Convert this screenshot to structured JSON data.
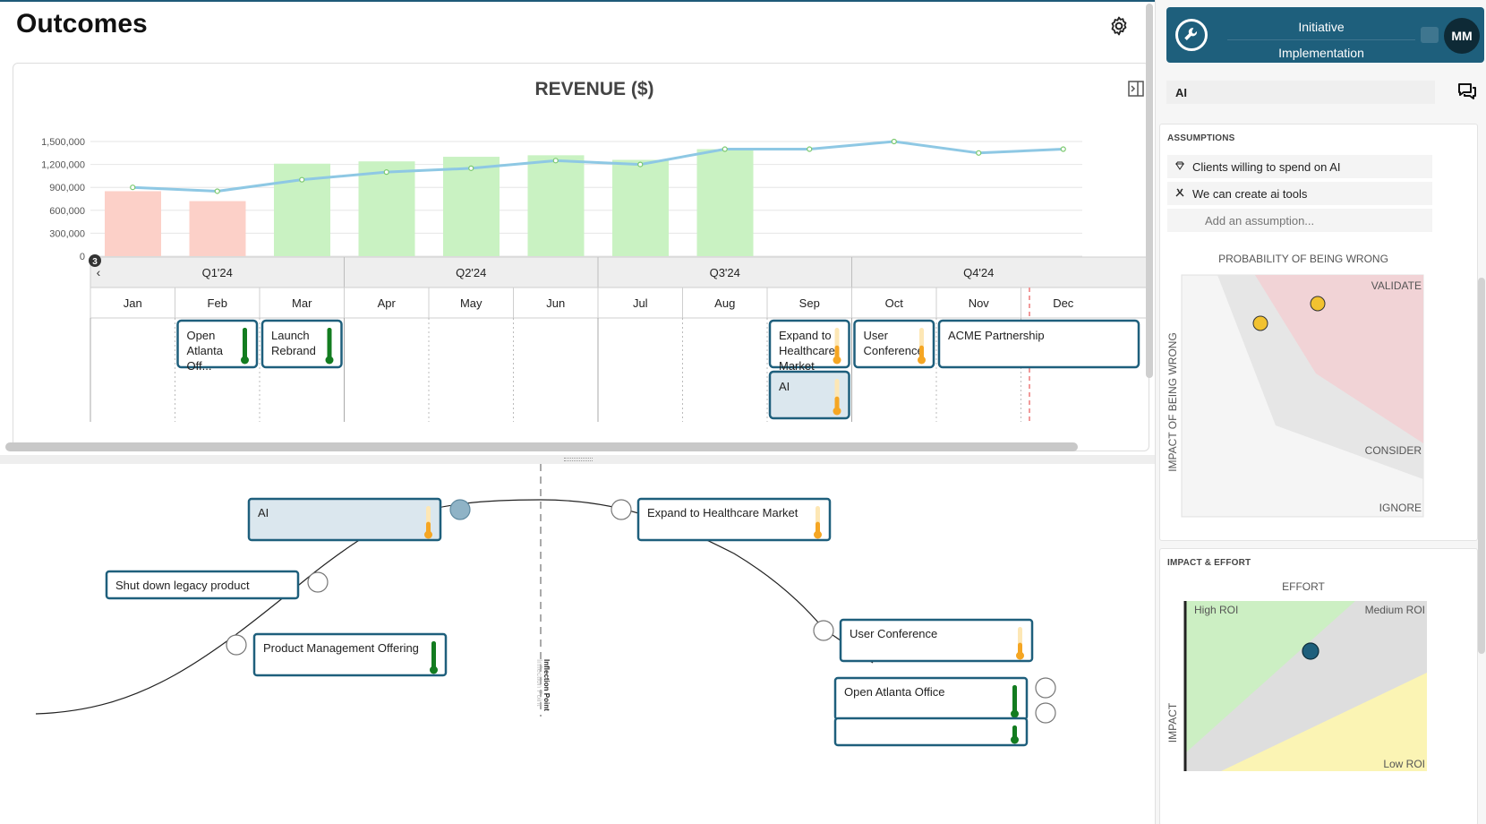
{
  "page": {
    "title": "Outcomes"
  },
  "chart_data": {
    "type": "bar",
    "title": "REVENUE ($)",
    "categories": [
      "Jan",
      "Feb",
      "Mar",
      "Apr",
      "May",
      "Jun",
      "Jul",
      "Aug",
      "Sep",
      "Oct",
      "Nov",
      "Dec"
    ],
    "ylim": [
      0,
      1500000
    ],
    "yticks": [
      "1,500,000",
      "1,200,000",
      "900,000",
      "600,000",
      "300,000",
      "0"
    ],
    "ytick_values": [
      1500000,
      1200000,
      900000,
      600000,
      300000,
      0
    ],
    "series": [
      {
        "kind": "bar",
        "values": [
          850000,
          720000,
          1210000,
          1240000,
          1300000,
          1320000,
          1260000,
          1400000,
          null,
          null,
          null,
          null
        ],
        "colors": [
          "#fcd0c8",
          "#fcd0c8",
          "#c9f2c2",
          "#c9f2c2",
          "#c9f2c2",
          "#c9f2c2",
          "#c9f2c2",
          "#c9f2c2",
          null,
          null,
          null,
          null
        ]
      },
      {
        "kind": "line",
        "values": [
          900000,
          850000,
          1000000,
          1100000,
          1150000,
          1250000,
          1200000,
          1400000,
          1400000,
          1500000,
          1350000,
          1400000
        ],
        "color": "#8ec8e4"
      }
    ],
    "grid": true
  },
  "timeline": {
    "badge": "3",
    "prev_arrow": "‹",
    "quarters": [
      "Q1'24",
      "Q2'24",
      "Q3'24",
      "Q4'24"
    ],
    "months": [
      "Jan",
      "Feb",
      "Mar",
      "Apr",
      "May",
      "Jun",
      "Jul",
      "Aug",
      "Sep",
      "Oct",
      "Nov",
      "Dec"
    ],
    "items": [
      {
        "lines": [
          "Open",
          "Atlanta",
          "Off..."
        ],
        "month": 1,
        "row": 0,
        "level": 1.0,
        "color": "#137c20",
        "highlight": false,
        "wide": 1
      },
      {
        "lines": [
          "Launch",
          "Rebrand"
        ],
        "month": 2,
        "row": 0,
        "level": 1.0,
        "color": "#137c20",
        "highlight": false,
        "wide": 1
      },
      {
        "lines": [
          "Expand to",
          "Healthcare",
          "Market"
        ],
        "month": 8,
        "row": 0,
        "level": 0.45,
        "color": "#f5a623",
        "highlight": false,
        "wide": 1
      },
      {
        "lines": [
          "User",
          "Conference"
        ],
        "month": 9,
        "row": 0,
        "level": 0.45,
        "color": "#f5a623",
        "highlight": false,
        "wide": 1
      },
      {
        "lines": [
          "ACME Partnership"
        ],
        "month": 10,
        "row": 0,
        "level": null,
        "color": null,
        "highlight": false,
        "wide": 2
      },
      {
        "lines": [
          "AI"
        ],
        "month": 8,
        "row": 1,
        "level": 0.45,
        "color": "#f5a623",
        "highlight": true,
        "wide": 1
      }
    ]
  },
  "curve": {
    "inflection_label": "Inflection Point",
    "inflection_sublabel": "Inflection Point",
    "nodes": [
      {
        "label": "AI",
        "level": 0.45,
        "color": "#f5a623",
        "highlight": true
      },
      {
        "label": "Shut down legacy product",
        "level": null,
        "color": null,
        "highlight": false
      },
      {
        "label": "Product Management Offering",
        "level": 1.0,
        "color": "#137c20",
        "highlight": false
      },
      {
        "label": "Expand to Healthcare Market",
        "level": 0.45,
        "color": "#f5a623",
        "highlight": false
      },
      {
        "label": "User Conference",
        "level": 0.45,
        "color": "#f5a623",
        "highlight": false
      },
      {
        "label": "Open Atlanta Office",
        "level": 1.0,
        "color": "#137c20",
        "highlight": false
      },
      {
        "label": "",
        "level": 1.0,
        "color": "#137c20",
        "highlight": false
      }
    ]
  },
  "sidebar": {
    "initiative_title_line1": "Initiative",
    "initiative_title_line2": "Implementation",
    "avatar_initials": "MM",
    "selected_name": "AI",
    "assumptions": {
      "title": "ASSUMPTIONS",
      "items": [
        {
          "icon": "gem-icon",
          "text": "Clients willing to spend on AI"
        },
        {
          "icon": "tools-icon",
          "text": "We can create ai tools"
        }
      ],
      "placeholder": "Add an assumption..."
    },
    "risk_matrix": {
      "x_title": "PROBABILITY OF BEING WRONG",
      "y_title": "IMPACT OF BEING WRONG",
      "zone_validate": "VALIDATE",
      "zone_consider": "CONSIDER",
      "zone_ignore": "IGNORE",
      "colors": {
        "validate": "#f1d3d6",
        "consider": "#e6e6e6",
        "ignore": "#f5f5f5"
      }
    },
    "impact_effort": {
      "title": "IMPACT & EFFORT",
      "x_title": "EFFORT",
      "y_title": "IMPACT",
      "zone_high": "High ROI",
      "zone_medium": "Medium ROI",
      "zone_low": "Low ROI",
      "colors": {
        "high": "#ccefc3",
        "medium": "#dedede",
        "low": "#fbf4b4"
      }
    }
  }
}
